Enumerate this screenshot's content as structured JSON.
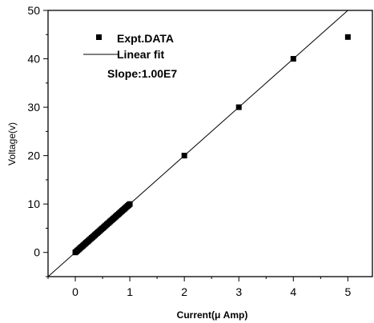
{
  "chart_data": {
    "type": "scatter",
    "xlabel": "Current(μ Amp)",
    "ylabel": "Voltage(v)",
    "xlim": [
      -0.5,
      5.45
    ],
    "ylim": [
      -5,
      50
    ],
    "x_ticks": [
      0,
      1,
      2,
      3,
      4,
      5
    ],
    "y_ticks": [
      0,
      10,
      20,
      30,
      40,
      50
    ],
    "legend": {
      "placement": "top-left",
      "entries": [
        "Expt.DATA",
        "Linear fit"
      ],
      "annotation": "Slope:1.00E7"
    },
    "series": [
      {
        "name": "Expt.DATA",
        "kind": "scatter",
        "marker": "square",
        "color": "#000000",
        "x": [
          0.0,
          0.02,
          0.04,
          0.06,
          0.08,
          0.1,
          0.12,
          0.14,
          0.16,
          0.18,
          0.2,
          0.22,
          0.24,
          0.26,
          0.28,
          0.3,
          0.32,
          0.34,
          0.36,
          0.38,
          0.4,
          0.42,
          0.44,
          0.46,
          0.48,
          0.5,
          0.52,
          0.54,
          0.56,
          0.58,
          0.6,
          0.62,
          0.64,
          0.66,
          0.68,
          0.7,
          0.72,
          0.74,
          0.76,
          0.78,
          0.8,
          0.82,
          0.84,
          0.86,
          0.88,
          0.9,
          0.92,
          0.94,
          0.96,
          0.98,
          1.0,
          2.0,
          3.0,
          4.0,
          5.0
        ],
        "y": [
          0.0,
          0.2,
          0.4,
          0.6,
          0.8,
          1.0,
          1.2,
          1.4,
          1.6,
          1.8,
          2.0,
          2.2,
          2.4,
          2.6,
          2.8,
          3.0,
          3.2,
          3.4,
          3.6,
          3.8,
          4.0,
          4.2,
          4.4,
          4.6,
          4.8,
          5.0,
          5.2,
          5.4,
          5.6,
          5.8,
          6.0,
          6.2,
          6.4,
          6.6,
          6.8,
          7.0,
          7.2,
          7.4,
          7.6,
          7.8,
          8.0,
          8.2,
          8.4,
          8.6,
          8.8,
          9.0,
          9.2,
          9.4,
          9.6,
          9.8,
          10.0,
          20.0,
          30.0,
          40.0,
          44.5
        ]
      },
      {
        "name": "Linear fit",
        "kind": "line",
        "color": "#000000",
        "slope": 10,
        "intercept": 0
      }
    ]
  }
}
